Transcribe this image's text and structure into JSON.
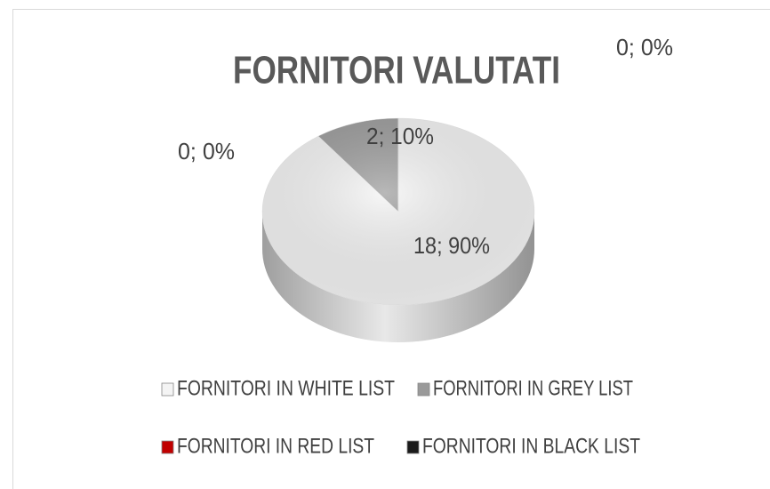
{
  "chart_data": {
    "type": "pie3d",
    "title": "FORNITORI VALUTATI",
    "categories": [
      "FORNITORI IN WHITE LIST",
      "FORNITORI IN GREY LIST",
      "FORNITORI IN RED LIST",
      "FORNITORI IN BLACK LIST"
    ],
    "values": [
      18,
      2,
      0,
      0
    ],
    "value_labels": [
      "18; 90%",
      "2; 10%",
      "0; 0%",
      "0; 0%"
    ],
    "colors": [
      "#f4f4f4",
      "#9a9a9a",
      "#c00000",
      "#1a1a1a"
    ]
  }
}
